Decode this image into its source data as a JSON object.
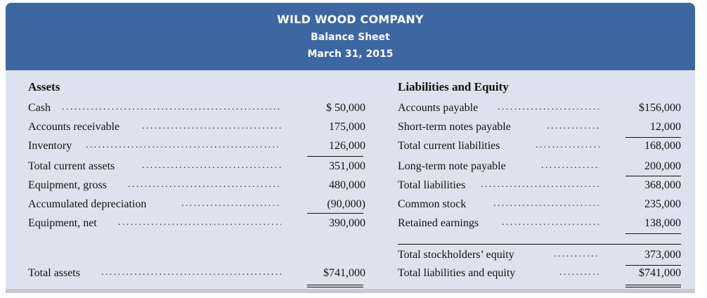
{
  "header": {
    "company": "WILD WOOD COMPANY",
    "statement": "Balance Sheet",
    "date": "March 31, 2015"
  },
  "assets": {
    "heading": "Assets",
    "rows": [
      {
        "label": "Cash",
        "amount": "$ 50,000"
      },
      {
        "label": "Accounts receivable",
        "amount": "175,000"
      },
      {
        "label": "Inventory",
        "amount": "126,000"
      },
      {
        "label": "Total current assets",
        "amount": "351,000"
      },
      {
        "label": "Equipment, gross",
        "amount": "480,000"
      },
      {
        "label": "Accumulated depreciation",
        "amount": "(90,000)"
      },
      {
        "label": "Equipment, net",
        "amount": "390,000"
      }
    ],
    "total": {
      "label": "Total assets",
      "amount": "$741,000"
    }
  },
  "liabilities_equity": {
    "heading": "Liabilities and Equity",
    "rows": [
      {
        "label": "Accounts payable",
        "amount": "$156,000"
      },
      {
        "label": "Short-term notes payable",
        "amount": "12,000"
      },
      {
        "label": "Total current liabilities",
        "amount": "168,000"
      },
      {
        "label": "Long-term note payable",
        "amount": "200,000"
      },
      {
        "label": "Total liabilities",
        "amount": "368,000"
      },
      {
        "label": "Common stock",
        "amount": "235,000"
      },
      {
        "label": "Retained earnings",
        "amount": "138,000"
      },
      {
        "label": "Total stockholders’ equity",
        "amount": "373,000"
      },
      {
        "label": "Total liabilities and equity",
        "amount": "$741,000"
      }
    ]
  },
  "colors": {
    "header_bg": "#3c67a3",
    "body_bg": "#dde3ee"
  }
}
